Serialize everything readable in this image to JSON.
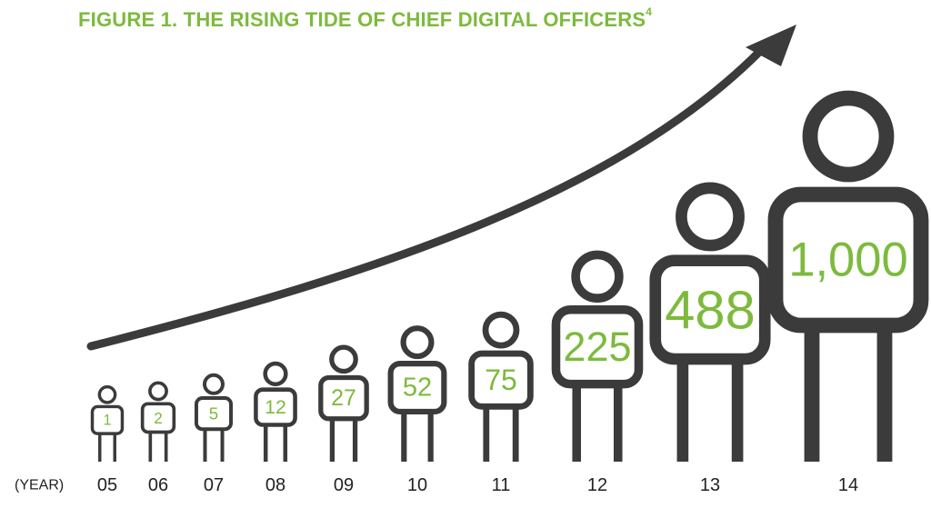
{
  "title": "FIGURE 1. THE RISING TIDE OF CHIEF DIGITAL OFFICERS",
  "title_footnote": "4",
  "colors": {
    "accent": "#7dba3d",
    "figure": "#3b3b3b",
    "text": "#222222"
  },
  "chart_data": {
    "type": "bar",
    "title": "FIGURE 1. THE RISING TIDE OF CHIEF DIGITAL OFFICERS",
    "xlabel": "(YEAR)",
    "categories": [
      "05",
      "06",
      "07",
      "08",
      "09",
      "10",
      "11",
      "12",
      "13",
      "14"
    ],
    "values": [
      1,
      2,
      5,
      12,
      27,
      52,
      75,
      225,
      488,
      1000
    ],
    "value_labels": [
      "1",
      "2",
      "5",
      "12",
      "27",
      "52",
      "75",
      "225",
      "488",
      "1,000"
    ],
    "marker": "person-icon",
    "trend_arrow": "rising",
    "grid": false
  }
}
